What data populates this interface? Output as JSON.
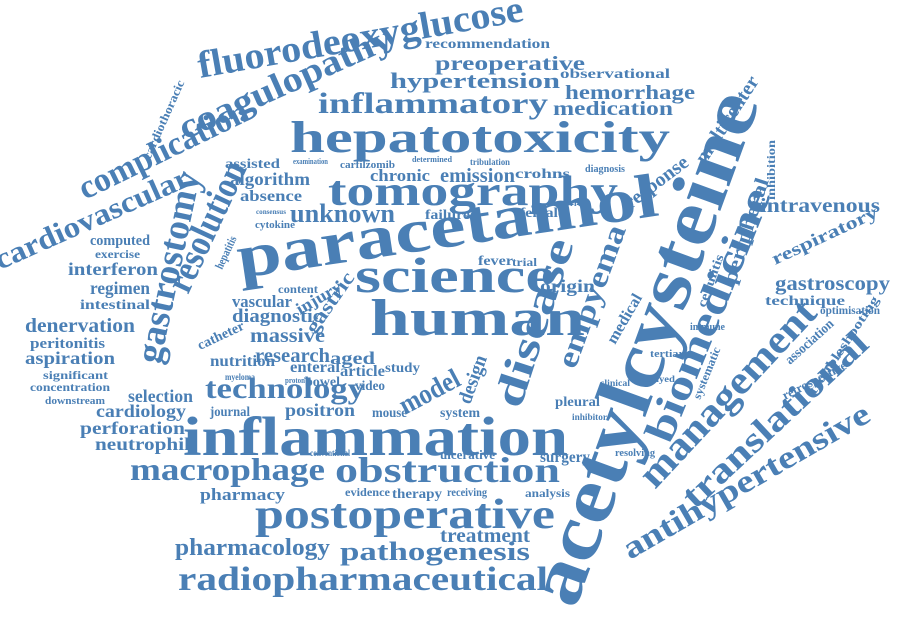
{
  "words": [
    "fluorodeoxyglucose",
    "recommendation",
    "coagulopathy",
    "preoperative",
    "hypertension",
    "observational",
    "hemorrhage",
    "inflammatory",
    "medication",
    "multicenter",
    "hepatotoxicity",
    "complication",
    "cardiothoracic",
    "carfilzomib",
    "determined",
    "tribulation",
    "chronic",
    "emission",
    "crohns",
    "diagnosis",
    "response",
    "inhibition",
    "assisted",
    "examination",
    "algorithm",
    "absence",
    "tomography",
    "cardiovascular",
    "unknown",
    "failure",
    "female",
    "referral",
    "intravenous",
    "cytokine",
    "consensus",
    "paracetamol",
    "acetylcysteine",
    "gastrostomy",
    "resolution",
    "computed",
    "exercise",
    "interferon",
    "regimen",
    "intestinal",
    "hepatitis",
    "science",
    "fever",
    "trial",
    "origin",
    "empyema",
    "biomedicine",
    "peripheral",
    "respiratory",
    "gastroscopy",
    "technique",
    "cellulitis",
    "denervation",
    "peritonitis",
    "aspiration",
    "significant",
    "concentration",
    "downstream",
    "content",
    "vascular",
    "injury",
    "gastric",
    "diagnostic",
    "massive",
    "catheter",
    "human",
    "disease",
    "medical",
    "immune",
    "troubleshooting",
    "optimisation",
    "management",
    "association",
    "translational",
    "retrospective",
    "antihypertensive",
    "research",
    "aged",
    "study",
    "nutrition",
    "enteral",
    "article",
    "myeloma",
    "proton",
    "bowel",
    "video",
    "technology",
    "selection",
    "cardiology",
    "perforation",
    "neutrophil",
    "model",
    "design",
    "positron",
    "mouse",
    "system",
    "journal",
    "inflammation",
    "pleural",
    "inhibitor",
    "macrophage",
    "obstruction",
    "conventional",
    "ulcerative",
    "surgery",
    "pharmacy",
    "evidence",
    "therapy",
    "receiving",
    "analysis",
    "postoperative",
    "treatment",
    "pharmacology",
    "pathogenesis",
    "radiopharmaceutical",
    "systematic",
    "delayed",
    "tertiary",
    "clinical",
    "resolving"
  ]
}
